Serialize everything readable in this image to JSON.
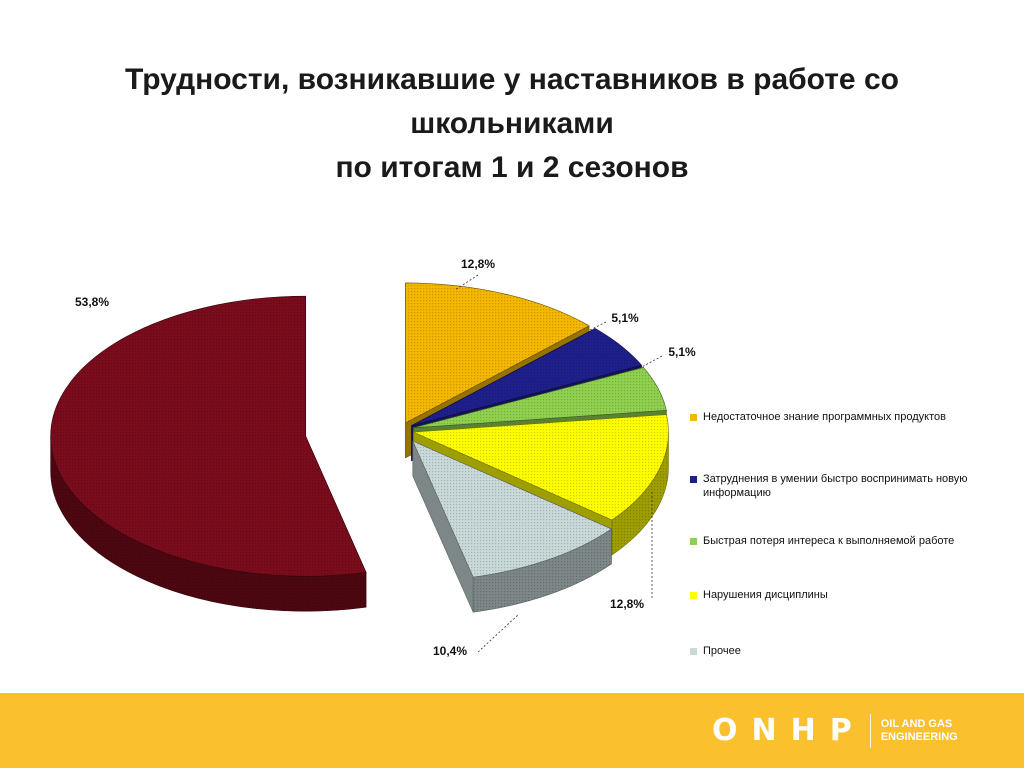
{
  "title": {
    "line1": "Трудности, возникавшие у наставников в работе со",
    "line2": "школьниками",
    "line3": "по итогам 1 и 2 сезонов"
  },
  "chart_data": {
    "type": "pie",
    "style": "exploded-3d",
    "slices": [
      {
        "label": "Недостаточное знание  программных продуктов",
        "value": 12.8,
        "display": "12,8%",
        "color": "#f5b800"
      },
      {
        "label": "Затруднения в умении быстро воспринимать новую информацию",
        "value": 5.1,
        "display": "5,1%",
        "color": "#1f1f8c"
      },
      {
        "label": "Быстрая потеря интереса к выполняемой работе",
        "value": 5.1,
        "display": "5,1%",
        "color": "#8fd14f"
      },
      {
        "label": "Нарушения дисциплины",
        "value": 12.8,
        "display": "12,8%",
        "color": "#ffff00"
      },
      {
        "label": "Прочее",
        "value": 10.4,
        "display": "10,4%",
        "color": "#c9d9d9"
      },
      {
        "label": "",
        "value": 53.8,
        "display": "53,8%",
        "color": "#7a0c1c"
      }
    ],
    "legend_position": "right"
  },
  "footer": {
    "logo_mark": "ONHP",
    "logo_tagline_line1": "OIL AND GAS",
    "logo_tagline_line2": "ENGINEERING",
    "bar_color": "#fbc02d"
  }
}
